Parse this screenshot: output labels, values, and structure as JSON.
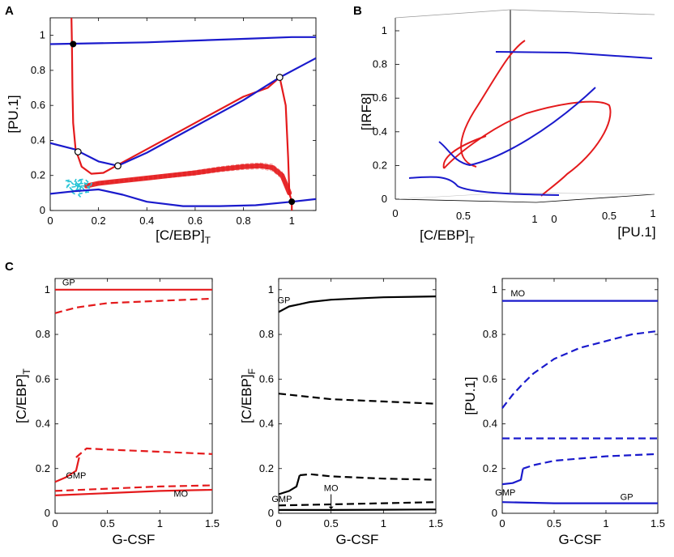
{
  "panel_labels": {
    "a": "A",
    "b": "B",
    "c": "C"
  },
  "colors": {
    "red": "#e41a1c",
    "blue": "#1a1acc",
    "black": "#000000",
    "cyan": "#27c4d6",
    "dashed_band": "#f08080"
  },
  "chart_data": [
    {
      "id": "A",
      "type": "line",
      "xlabel_main": "[C/EBP]",
      "xlabel_sub": "T",
      "ylabel": "[PU.1]",
      "xlim": [
        0,
        1.1
      ],
      "ylim": [
        0,
        1.1
      ],
      "xticks": [
        "0",
        "0.2",
        "0.4",
        "0.6",
        "0.8",
        "1"
      ],
      "yticks": [
        "0",
        "0.2",
        "0.4",
        "0.6",
        "0.8",
        "1"
      ],
      "series": [
        {
          "name": "red-nullcline-left",
          "color": "red",
          "points": [
            [
              0.088,
              1.1
            ],
            [
              0.09,
              0.95
            ],
            [
              0.092,
              0.7
            ],
            [
              0.095,
              0.5
            ],
            [
              0.105,
              0.35
            ],
            [
              0.13,
              0.25
            ],
            [
              0.17,
              0.21
            ],
            [
              0.22,
              0.215
            ],
            [
              0.28,
              0.26
            ],
            [
              0.4,
              0.35
            ],
            [
              0.6,
              0.5
            ],
            [
              0.8,
              0.65
            ],
            [
              0.9,
              0.7
            ],
            [
              0.95,
              0.76
            ]
          ]
        },
        {
          "name": "red-nullcline-right",
          "color": "red",
          "points": [
            [
              0.95,
              0.76
            ],
            [
              0.975,
              0.6
            ],
            [
              0.985,
              0.3
            ],
            [
              0.99,
              0.1
            ],
            [
              1.0,
              0.05
            ],
            [
              1.0,
              0.0
            ]
          ]
        },
        {
          "name": "blue-top",
          "color": "blue",
          "points": [
            [
              0,
              0.95
            ],
            [
              0.2,
              0.955
            ],
            [
              0.4,
              0.96
            ],
            [
              0.6,
              0.97
            ],
            [
              0.8,
              0.98
            ],
            [
              1.0,
              0.99
            ],
            [
              1.1,
              0.99
            ]
          ]
        },
        {
          "name": "blue-middle",
          "color": "blue",
          "points": [
            [
              0,
              0.385
            ],
            [
              0.1,
              0.35
            ],
            [
              0.2,
              0.28
            ],
            [
              0.28,
              0.255
            ],
            [
              0.4,
              0.33
            ],
            [
              0.6,
              0.48
            ],
            [
              0.8,
              0.63
            ],
            [
              0.95,
              0.76
            ],
            [
              1.1,
              0.87
            ]
          ]
        },
        {
          "name": "blue-lower",
          "color": "blue",
          "points": [
            [
              0,
              0.095
            ],
            [
              0.1,
              0.11
            ],
            [
              0.2,
              0.12
            ],
            [
              0.3,
              0.09
            ],
            [
              0.4,
              0.05
            ],
            [
              0.55,
              0.025
            ],
            [
              0.7,
              0.025
            ],
            [
              0.85,
              0.03
            ],
            [
              1.0,
              0.05
            ],
            [
              1.1,
              0.065
            ]
          ]
        }
      ],
      "trajectory_band": {
        "x": [
          0.15,
          0.2,
          0.3,
          0.4,
          0.5,
          0.6,
          0.7,
          0.8,
          0.87,
          0.92,
          0.96,
          0.99
        ],
        "y": [
          0.14,
          0.155,
          0.17,
          0.185,
          0.2,
          0.215,
          0.235,
          0.25,
          0.255,
          0.245,
          0.2,
          0.1
        ]
      },
      "filled_points": [
        [
          0.095,
          0.95
        ],
        [
          1.0,
          0.05
        ]
      ],
      "open_points": [
        [
          0.115,
          0.335
        ],
        [
          0.28,
          0.255
        ],
        [
          0.95,
          0.76
        ]
      ]
    },
    {
      "id": "B",
      "type": "line",
      "zlabel": "[IRF8]",
      "xlabel_main": "[C/EBP]",
      "xlabel_sub": "T",
      "ylabel": "[PU.1]",
      "zticks": [
        "0",
        "0.2",
        "0.4",
        "0.6",
        "0.8",
        "1"
      ],
      "xticks": [
        "0",
        "0.5",
        "1"
      ],
      "yticks": [
        "0",
        "0.5",
        "1"
      ]
    },
    {
      "id": "C1",
      "type": "line",
      "xlabel": "G-CSF",
      "ylabel_main": "[C/EBP]",
      "ylabel_sub": "T",
      "xlim": [
        0,
        1.5
      ],
      "ylim": [
        0,
        1.05
      ],
      "xticks": [
        "0",
        "0.5",
        "1",
        "1.5"
      ],
      "yticks": [
        "0",
        "0.2",
        "0.4",
        "0.6",
        "0.8",
        "1"
      ],
      "annotations": [
        {
          "text": "GP",
          "x": 0.13,
          "y": 1.02
        },
        {
          "text": "GMP",
          "x": 0.2,
          "y": 0.155
        },
        {
          "text": "MO",
          "x": 1.2,
          "y": 0.075
        }
      ],
      "series": [
        {
          "name": "GP stable",
          "style": "solid",
          "color": "red",
          "x": [
            0,
            0.5,
            1,
            1.5
          ],
          "y": [
            1.0,
            1.0,
            1.0,
            1.0
          ]
        },
        {
          "name": "upper unstable",
          "style": "dashed",
          "color": "red",
          "x": [
            0,
            0.2,
            0.5,
            1,
            1.5
          ],
          "y": [
            0.895,
            0.92,
            0.94,
            0.95,
            0.96
          ]
        },
        {
          "name": "GMP stable",
          "style": "solid",
          "color": "red",
          "x": [
            0,
            0.1,
            0.2,
            0.23
          ],
          "y": [
            0.14,
            0.16,
            0.19,
            0.25
          ]
        },
        {
          "name": "GMP unstable",
          "style": "dashed",
          "color": "red",
          "x": [
            0.2,
            0.3,
            0.5,
            1,
            1.5
          ],
          "y": [
            0.25,
            0.29,
            0.285,
            0.275,
            0.265
          ]
        },
        {
          "name": "lower unstable",
          "style": "dashed",
          "color": "red",
          "x": [
            0,
            0.5,
            1,
            1.5
          ],
          "y": [
            0.1,
            0.11,
            0.12,
            0.125
          ]
        },
        {
          "name": "MO stable",
          "style": "solid",
          "color": "red",
          "x": [
            0,
            0.5,
            1,
            1.5
          ],
          "y": [
            0.08,
            0.09,
            0.1,
            0.105
          ]
        }
      ]
    },
    {
      "id": "C2",
      "type": "line",
      "xlabel": "G-CSF",
      "ylabel_main": "[C/EBP]",
      "ylabel_sub": "F",
      "xlim": [
        0,
        1.5
      ],
      "ylim": [
        0,
        1.05
      ],
      "xticks": [
        "0",
        "0.5",
        "1",
        "1.5"
      ],
      "yticks": [
        "0",
        "0.2",
        "0.4",
        "0.6",
        "0.8",
        "1"
      ],
      "annotations": [
        {
          "text": "GP",
          "x": 0.05,
          "y": 0.94
        },
        {
          "text": "GMP",
          "x": 0.03,
          "y": 0.05
        },
        {
          "text": "MO",
          "x": 0.5,
          "y": 0.1
        }
      ],
      "series": [
        {
          "name": "GP stable",
          "style": "solid",
          "color": "black",
          "x": [
            0,
            0.1,
            0.2,
            0.3,
            0.5,
            0.8,
            1,
            1.5
          ],
          "y": [
            0.9,
            0.925,
            0.935,
            0.945,
            0.955,
            0.962,
            0.966,
            0.97
          ]
        },
        {
          "name": "upper unstable",
          "style": "dashed",
          "color": "black",
          "x": [
            0,
            0.5,
            1,
            1.5
          ],
          "y": [
            0.535,
            0.51,
            0.5,
            0.49
          ]
        },
        {
          "name": "GMP stable",
          "style": "solid",
          "color": "black",
          "x": [
            0,
            0.1,
            0.17,
            0.2
          ],
          "y": [
            0.085,
            0.1,
            0.12,
            0.17
          ]
        },
        {
          "name": "GMP unstable",
          "style": "dashed",
          "color": "black",
          "x": [
            0.2,
            0.3,
            0.5,
            1,
            1.5
          ],
          "y": [
            0.17,
            0.175,
            0.165,
            0.155,
            0.15
          ]
        },
        {
          "name": "lower unstable",
          "style": "dashed",
          "color": "black",
          "x": [
            0,
            0.5,
            1,
            1.5
          ],
          "y": [
            0.035,
            0.04,
            0.045,
            0.05
          ]
        },
        {
          "name": "MO stable",
          "style": "solid",
          "color": "black",
          "x": [
            0,
            0.5,
            1,
            1.5
          ],
          "y": [
            0.015,
            0.015,
            0.016,
            0.017
          ]
        }
      ]
    },
    {
      "id": "C3",
      "type": "line",
      "xlabel": "G-CSF",
      "ylabel_main": "[PU.1]",
      "ylabel_sub": "",
      "xlim": [
        0,
        1.5
      ],
      "ylim": [
        0,
        1.05
      ],
      "xticks": [
        "0",
        "0.5",
        "1",
        "1.5"
      ],
      "yticks": [
        "0",
        "0.2",
        "0.4",
        "0.6",
        "0.8",
        "1"
      ],
      "annotations": [
        {
          "text": "MO",
          "x": 0.15,
          "y": 0.97
        },
        {
          "text": "GMP",
          "x": 0.03,
          "y": 0.08
        },
        {
          "text": "GP",
          "x": 1.2,
          "y": 0.06
        }
      ],
      "series": [
        {
          "name": "MO stable",
          "style": "solid",
          "color": "blue",
          "x": [
            0,
            0.5,
            1,
            1.5
          ],
          "y": [
            0.95,
            0.95,
            0.95,
            0.95
          ]
        },
        {
          "name": "upper unstable",
          "style": "dashed",
          "color": "blue",
          "x": [
            0,
            0.1,
            0.2,
            0.3,
            0.5,
            0.75,
            1,
            1.25,
            1.5
          ],
          "y": [
            0.47,
            0.53,
            0.58,
            0.625,
            0.69,
            0.74,
            0.77,
            0.8,
            0.815
          ]
        },
        {
          "name": "middle unstable",
          "style": "dashed",
          "color": "blue",
          "x": [
            0,
            0.5,
            1,
            1.5
          ],
          "y": [
            0.335,
            0.335,
            0.335,
            0.335
          ]
        },
        {
          "name": "GMP stable",
          "style": "solid",
          "color": "blue",
          "x": [
            0,
            0.1,
            0.18,
            0.2
          ],
          "y": [
            0.13,
            0.135,
            0.15,
            0.2
          ]
        },
        {
          "name": "GMP unstable",
          "style": "dashed",
          "color": "blue",
          "x": [
            0.2,
            0.3,
            0.5,
            1,
            1.5
          ],
          "y": [
            0.2,
            0.215,
            0.235,
            0.255,
            0.265
          ]
        },
        {
          "name": "GP stable",
          "style": "solid",
          "color": "blue",
          "x": [
            0,
            0.5,
            1,
            1.5
          ],
          "y": [
            0.05,
            0.045,
            0.045,
            0.045
          ]
        }
      ]
    }
  ]
}
